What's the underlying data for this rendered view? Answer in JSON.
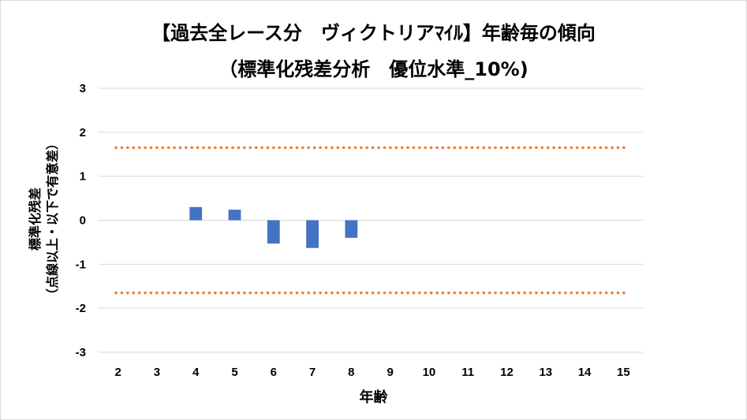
{
  "chart_data": {
    "type": "bar",
    "title": "【過去全レース分　ヴィクトリアﾏｲﾙ】年齢毎の傾向",
    "subtitle": "（標準化残差分析　優位水準_10%)",
    "xlabel": "年齢",
    "ylabel_line1": "標準化残差",
    "ylabel_line2": "（点線以上・以下で有意差）",
    "categories": [
      "2",
      "3",
      "4",
      "5",
      "6",
      "7",
      "8",
      "9",
      "10",
      "11",
      "12",
      "13",
      "14",
      "15"
    ],
    "values": [
      null,
      null,
      0.3,
      0.24,
      -0.53,
      -0.63,
      -0.4,
      null,
      null,
      null,
      null,
      null,
      null,
      null
    ],
    "ylim": [
      -3,
      3
    ],
    "yticks": [
      "3",
      "2",
      "1",
      "0",
      "-1",
      "-2",
      "-3"
    ],
    "threshold_lines": [
      1.65,
      -1.65
    ],
    "grid": "horizontal",
    "legend": "none",
    "colors": {
      "bar": "#4472c4",
      "threshold": "#ed7d31",
      "grid": "#d9d9d9"
    }
  }
}
